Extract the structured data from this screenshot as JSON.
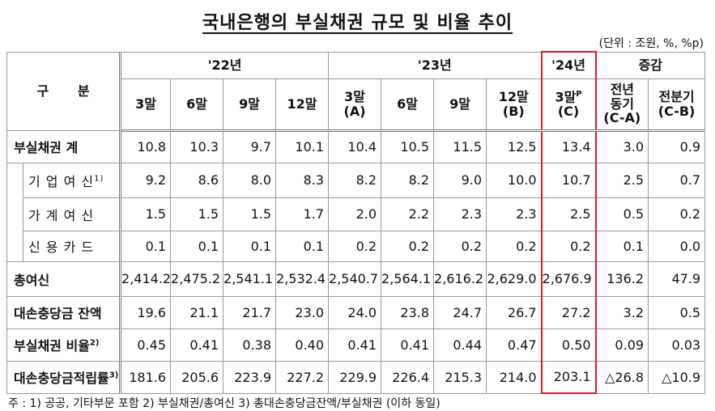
{
  "title": "국내은행의 부실채권 규모 및 비율 추이",
  "unit": "(단위 : 조원, %, %p)",
  "table": {
    "corner": "구 분",
    "groups": [
      {
        "label": "'22년",
        "span": 4
      },
      {
        "label": "'23년",
        "span": 4
      },
      {
        "label": "'24년",
        "span": 1
      },
      {
        "label": "증감",
        "span": 2
      }
    ],
    "highlight_column": 8,
    "columns": [
      {
        "lines": [
          "3말"
        ]
      },
      {
        "lines": [
          "6말"
        ]
      },
      {
        "lines": [
          "9말"
        ]
      },
      {
        "lines": [
          "12말"
        ]
      },
      {
        "lines": [
          "3말",
          "(A)"
        ]
      },
      {
        "lines": [
          "6말"
        ]
      },
      {
        "lines": [
          "9말"
        ]
      },
      {
        "lines": [
          "12말",
          "(B)"
        ]
      },
      {
        "lines": [
          "3말",
          "(C)"
        ],
        "sup": "P"
      },
      {
        "lines": [
          "전년",
          "동기",
          "(C-A)"
        ]
      },
      {
        "lines": [
          "전분기",
          "(C-B)"
        ]
      }
    ],
    "rows": [
      {
        "label": "부실채권 계",
        "cells": [
          "10.8",
          "10.3",
          "9.7",
          "10.1",
          "10.4",
          "10.5",
          "11.5",
          "12.5",
          "13.4",
          "3.0",
          "0.9"
        ]
      },
      {
        "label": "기 업 여 신",
        "note": "1)",
        "sub": true,
        "cells": [
          "9.2",
          "8.6",
          "8.0",
          "8.3",
          "8.2",
          "8.2",
          "9.0",
          "10.0",
          "10.7",
          "2.5",
          "0.7"
        ]
      },
      {
        "label": "가 계 여 신",
        "sub": true,
        "cells": [
          "1.5",
          "1.5",
          "1.5",
          "1.7",
          "2.0",
          "2.2",
          "2.3",
          "2.3",
          "2.5",
          "0.5",
          "0.2"
        ]
      },
      {
        "label": "신 용 카 드",
        "sub": true,
        "cells": [
          "0.1",
          "0.1",
          "0.1",
          "0.1",
          "0.2",
          "0.2",
          "0.2",
          "0.2",
          "0.2",
          "0.1",
          "0.0"
        ]
      },
      {
        "label": "총여신",
        "cells": [
          "2,414.2",
          "2,475.2",
          "2,541.1",
          "2,532.4",
          "2,540.7",
          "2,564.1",
          "2,616.2",
          "2,629.0",
          "2,676.9",
          "136.2",
          "47.9"
        ]
      },
      {
        "label": "대손충당금 잔액",
        "cells": [
          "19.6",
          "21.1",
          "21.7",
          "23.0",
          "24.0",
          "23.8",
          "24.7",
          "26.7",
          "27.2",
          "3.2",
          "0.5"
        ]
      },
      {
        "label": "부실채권 비율",
        "note": "2)",
        "cells": [
          "0.45",
          "0.41",
          "0.38",
          "0.40",
          "0.41",
          "0.41",
          "0.44",
          "0.47",
          "0.50",
          "0.09",
          "0.03"
        ]
      },
      {
        "label": "대손충당금적립률",
        "note": "3)",
        "cells": [
          "181.6",
          "205.6",
          "223.9",
          "227.2",
          "229.9",
          "226.4",
          "215.3",
          "214.0",
          "203.1",
          "△26.8",
          "△10.9"
        ]
      }
    ]
  },
  "footnote": "주 : 1) 공공, 기타부문 포함   2) 부실채권/총여신   3) 총대손충당금잔액/부실채권 (이하 동일)"
}
